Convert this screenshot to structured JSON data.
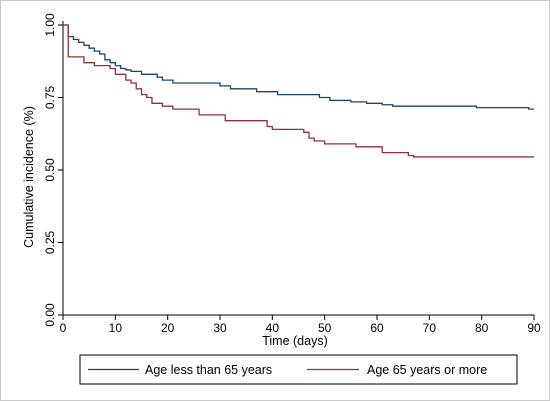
{
  "chart_data": {
    "type": "line",
    "step": true,
    "xlabel": "Time (days)",
    "ylabel": "Cumulative incidence (%)",
    "xlim": [
      0,
      90
    ],
    "ylim": [
      0,
      1
    ],
    "x_ticks": [
      0,
      10,
      20,
      30,
      40,
      50,
      60,
      70,
      80,
      90
    ],
    "y_ticks": [
      "0.00",
      "0.25",
      "0.50",
      "0.75",
      "1.00"
    ],
    "grid": false,
    "legend_position": "bottom",
    "series": [
      {
        "name": "Age less than 65 years",
        "color": "#1a476f",
        "points": [
          [
            0,
            1.0
          ],
          [
            1,
            0.96
          ],
          [
            2,
            0.95
          ],
          [
            3,
            0.94
          ],
          [
            4,
            0.93
          ],
          [
            5,
            0.92
          ],
          [
            6,
            0.91
          ],
          [
            7,
            0.9
          ],
          [
            8,
            0.88
          ],
          [
            9,
            0.87
          ],
          [
            10,
            0.86
          ],
          [
            11,
            0.85
          ],
          [
            12,
            0.845
          ],
          [
            13,
            0.84
          ],
          [
            15,
            0.83
          ],
          [
            18,
            0.82
          ],
          [
            19,
            0.81
          ],
          [
            21,
            0.8
          ],
          [
            30,
            0.79
          ],
          [
            32,
            0.78
          ],
          [
            37,
            0.77
          ],
          [
            41,
            0.76
          ],
          [
            49,
            0.75
          ],
          [
            51,
            0.74
          ],
          [
            55,
            0.735
          ],
          [
            58,
            0.73
          ],
          [
            61,
            0.725
          ],
          [
            63,
            0.72
          ],
          [
            79,
            0.715
          ],
          [
            89,
            0.71
          ],
          [
            90,
            0.71
          ]
        ]
      },
      {
        "name": "Age 65 years or more",
        "color": "#90353b",
        "points": [
          [
            0,
            1.0
          ],
          [
            1,
            0.89
          ],
          [
            4,
            0.87
          ],
          [
            6,
            0.86
          ],
          [
            9,
            0.85
          ],
          [
            10,
            0.83
          ],
          [
            12,
            0.81
          ],
          [
            13,
            0.8
          ],
          [
            14,
            0.78
          ],
          [
            15,
            0.76
          ],
          [
            16,
            0.75
          ],
          [
            17,
            0.73
          ],
          [
            19,
            0.72
          ],
          [
            21,
            0.71
          ],
          [
            26,
            0.69
          ],
          [
            31,
            0.67
          ],
          [
            39,
            0.65
          ],
          [
            40,
            0.64
          ],
          [
            46,
            0.63
          ],
          [
            47,
            0.61
          ],
          [
            48,
            0.6
          ],
          [
            50,
            0.59
          ],
          [
            56,
            0.58
          ],
          [
            61,
            0.56
          ],
          [
            66,
            0.55
          ],
          [
            67,
            0.545
          ],
          [
            90,
            0.545
          ]
        ]
      }
    ]
  }
}
